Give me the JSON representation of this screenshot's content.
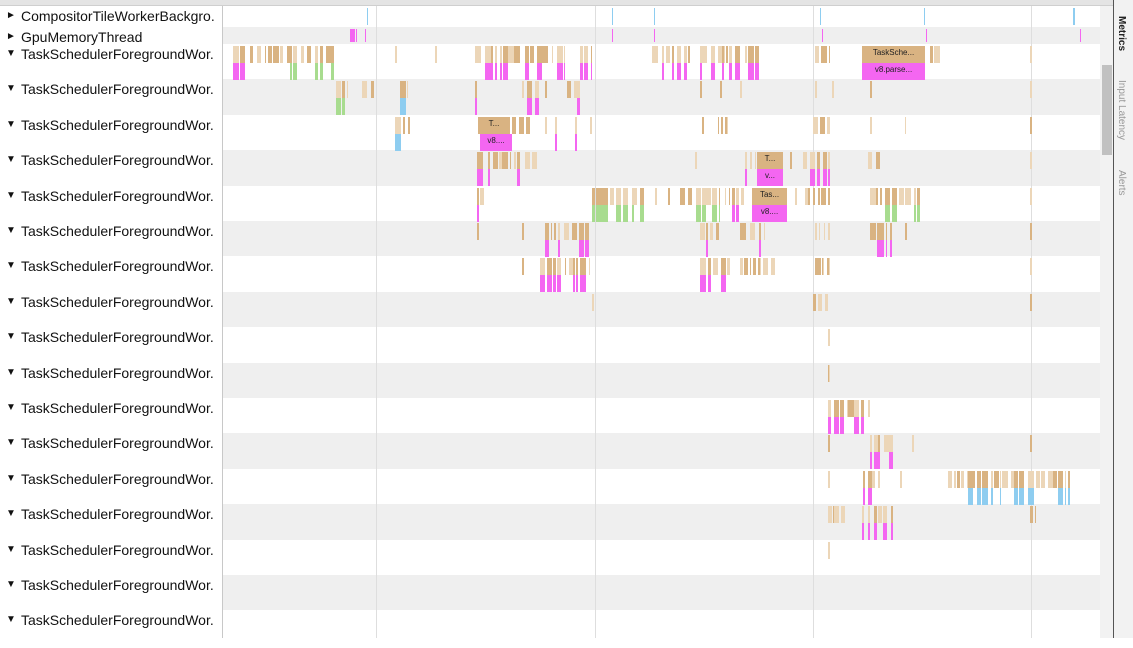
{
  "tracks": [
    {
      "label": "CompositorTileWorkerBackgro.",
      "expanded": false
    },
    {
      "label": "GpuMemoryThread",
      "expanded": false
    },
    {
      "label": "TaskSchedulerForegroundWor.",
      "expanded": true
    },
    {
      "label": "TaskSchedulerForegroundWor.",
      "expanded": true
    },
    {
      "label": "TaskSchedulerForegroundWor.",
      "expanded": true
    },
    {
      "label": "TaskSchedulerForegroundWor.",
      "expanded": true
    },
    {
      "label": "TaskSchedulerForegroundWor.",
      "expanded": true
    },
    {
      "label": "TaskSchedulerForegroundWor.",
      "expanded": true
    },
    {
      "label": "TaskSchedulerForegroundWor.",
      "expanded": true
    },
    {
      "label": "TaskSchedulerForegroundWor.",
      "expanded": true
    },
    {
      "label": "TaskSchedulerForegroundWor.",
      "expanded": true
    },
    {
      "label": "TaskSchedulerForegroundWor.",
      "expanded": true
    },
    {
      "label": "TaskSchedulerForegroundWor.",
      "expanded": true
    },
    {
      "label": "TaskSchedulerForegroundWor.",
      "expanded": true
    },
    {
      "label": "TaskSchedulerForegroundWor.",
      "expanded": true
    },
    {
      "label": "TaskSchedulerForegroundWor.",
      "expanded": true
    },
    {
      "label": "TaskSchedulerForegroundWor.",
      "expanded": true
    },
    {
      "label": "TaskSchedulerForegroundWor.",
      "expanded": true
    },
    {
      "label": "TaskSchedulerForegroundWor.",
      "expanded": true
    }
  ],
  "arrows": {
    "collapsed": "►",
    "expanded": "▼"
  },
  "labeled_slices": [
    {
      "track": 2,
      "top": "TaskSche...",
      "bottom": "v8.parse..."
    },
    {
      "track": 4,
      "top": "T...",
      "bottom": "v8...."
    },
    {
      "track": 5,
      "top": "T...",
      "bottom": "v..."
    },
    {
      "track": 6,
      "top": "Tas...",
      "bottom": "v8...."
    }
  ],
  "side_tabs": [
    {
      "label": "Metrics",
      "active": true
    },
    {
      "label": "Input Latency",
      "active": false
    },
    {
      "label": "Alerts",
      "active": false
    }
  ],
  "colors": {
    "task": "#d9b382",
    "task_light": "#ecd6b8",
    "v8": "#f466f1",
    "green": "#a8dc8f",
    "blue": "#8ecdf0"
  }
}
